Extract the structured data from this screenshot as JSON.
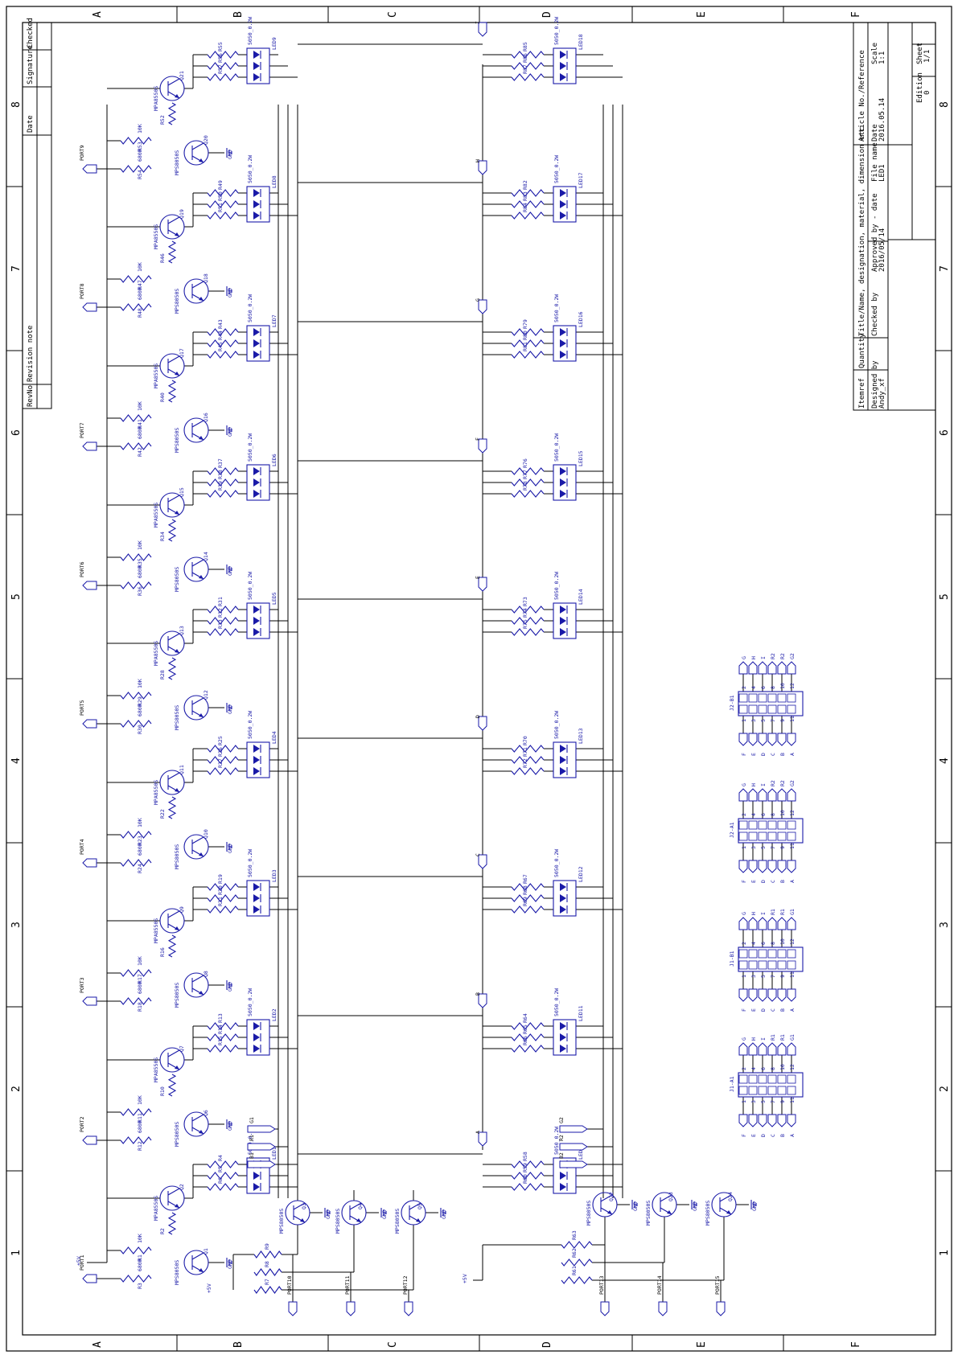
{
  "zones": {
    "columns": [
      "A",
      "B",
      "C",
      "D",
      "E",
      "F"
    ],
    "rows": [
      "1",
      "2",
      "3",
      "4",
      "5",
      "6",
      "7",
      "8"
    ]
  },
  "revision_block": {
    "headers": [
      "RevNo",
      "Revision note",
      "Date",
      "Signature",
      "Checked"
    ]
  },
  "title_block": {
    "itemref": "Itemref",
    "quantity": "Quantity",
    "title": "Title/Name, designation, material, dimension etc",
    "article": "Article No./Reference",
    "designed_by_label": "Designed by",
    "designed_by": "Andy_xf",
    "checked_by_label": "Checked by",
    "approved_label": "Approved by - date",
    "approved_date": "2016/05/14",
    "file_name_label": "File name",
    "file_name": "LED1",
    "date_label": "Date",
    "date": "2016.05.14",
    "scale_label": "Scale",
    "scale": "1:1",
    "edition_label": "Edition",
    "edition": "0",
    "sheet_label": "Sheet",
    "sheet": "1/1"
  },
  "left_stages": [
    {
      "port": "PORT1",
      "npn": "Q1",
      "pnp": "Q2",
      "r_base": "R3",
      "r_bias": "R1",
      "r_pnp": "R2",
      "led": "LED1",
      "ra": "R4",
      "rb": "R5",
      "rc": "R6"
    },
    {
      "port": "PORT2",
      "npn": "Q6",
      "pnp": "Q7",
      "r_base": "R12",
      "r_bias": "R11",
      "r_pnp": "R10",
      "led": "LED2",
      "ra": "R13",
      "rb": "R14",
      "rc": "R15"
    },
    {
      "port": "PORT3",
      "npn": "Q8",
      "pnp": "Q9",
      "r_base": "R18",
      "r_bias": "R17",
      "r_pnp": "R16",
      "led": "LED3",
      "ra": "R19",
      "rb": "R20",
      "rc": "R21"
    },
    {
      "port": "PORT4",
      "npn": "Q10",
      "pnp": "Q11",
      "r_base": "R24",
      "r_bias": "R23",
      "r_pnp": "R22",
      "led": "LED4",
      "ra": "R25",
      "rb": "R26",
      "rc": "R27"
    },
    {
      "port": "PORT5",
      "npn": "Q12",
      "pnp": "Q13",
      "r_base": "R30",
      "r_bias": "R29",
      "r_pnp": "R28",
      "led": "LED5",
      "ra": "R31",
      "rb": "R32",
      "rc": "R33"
    },
    {
      "port": "PORT6",
      "npn": "Q14",
      "pnp": "Q15",
      "r_base": "R36",
      "r_bias": "R35",
      "r_pnp": "R34",
      "led": "LED6",
      "ra": "R37",
      "rb": "R38",
      "rc": "R39"
    },
    {
      "port": "PORT7",
      "npn": "Q16",
      "pnp": "Q17",
      "r_base": "R42",
      "r_bias": "R41",
      "r_pnp": "R40",
      "led": "LED7",
      "ra": "R43",
      "rb": "R44",
      "rc": "R45"
    },
    {
      "port": "PORT8",
      "npn": "Q18",
      "pnp": "Q19",
      "r_base": "R48",
      "r_bias": "R47",
      "r_pnp": "R46",
      "led": "LED8",
      "ra": "R49",
      "rb": "R50",
      "rc": "R51"
    },
    {
      "port": "PORT9",
      "npn": "Q20",
      "pnp": "Q21",
      "r_base": "R54",
      "r_bias": "R53",
      "r_pnp": "R52",
      "led": "LED9",
      "ra": "R55",
      "rb": "R56",
      "rc": "R57"
    }
  ],
  "right_stages": [
    {
      "net": "A",
      "led": "LED10",
      "ra": "R58",
      "rb": "R59",
      "rc": "R60"
    },
    {
      "net": "B",
      "led": "LED11",
      "ra": "R64",
      "rb": "R65",
      "rc": "R66"
    },
    {
      "net": "C",
      "led": "LED12",
      "ra": "R67",
      "rb": "R68",
      "rc": "R69"
    },
    {
      "net": "D",
      "led": "LED13",
      "ra": "R70",
      "rb": "R71",
      "rc": "R72"
    },
    {
      "net": "E",
      "led": "LED14",
      "ra": "R73",
      "rb": "R74",
      "rc": "R75"
    },
    {
      "net": "F",
      "led": "LED15",
      "ra": "R76",
      "rb": "R77",
      "rc": "R78"
    },
    {
      "net": "G",
      "led": "LED16",
      "ra": "R79",
      "rb": "R80",
      "rc": "R81"
    },
    {
      "net": "H",
      "led": "LED17",
      "ra": "R82",
      "rb": "R83",
      "rc": "R84"
    },
    {
      "net": "I",
      "led": "LED18",
      "ra": "R85",
      "rb": "R86",
      "rc": "R87"
    }
  ],
  "drivers_left": [
    {
      "q": "Q3",
      "r": "R9",
      "port": "PORT10"
    },
    {
      "q": "Q4",
      "r": "R8",
      "port": "PORT11"
    },
    {
      "q": "Q5",
      "r": "R7",
      "port": "PORT12"
    }
  ],
  "drivers_right": [
    {
      "q": "Q22",
      "r": "R63",
      "port": "PORT13"
    },
    {
      "q": "Q23",
      "r": "R62",
      "port": "PORT14"
    },
    {
      "q": "Q24",
      "r": "R61",
      "port": "PORT15"
    }
  ],
  "labels": {
    "npn_part": "MPS8050S",
    "pnp_part": "MPA8550S",
    "led_part": "5050_0.2W",
    "r_base_val": "680R",
    "r_bias_val": "10K",
    "r_led_val": "180ohm",
    "gnd": "GND",
    "vcc": "+5V"
  },
  "bus_left": [
    "G1",
    "R1",
    "B1"
  ],
  "bus_right": [
    "G2",
    "R2",
    "B2"
  ],
  "connectors": [
    {
      "name": "J2-B1",
      "top": [
        "F",
        "E",
        "D",
        "C",
        "B",
        "A"
      ],
      "bottom": [
        "G",
        "H",
        "I",
        "R2",
        "R2",
        "G2"
      ]
    },
    {
      "name": "J2-A1",
      "top": [
        "F",
        "E",
        "D",
        "C",
        "B",
        "A"
      ],
      "bottom": [
        "G",
        "H",
        "I",
        "R2",
        "R2",
        "G2"
      ]
    },
    {
      "name": "J1-B1",
      "top": [
        "F",
        "E",
        "D",
        "C",
        "B",
        "A"
      ],
      "bottom": [
        "G",
        "H",
        "I",
        "R1",
        "R1",
        "G1"
      ]
    },
    {
      "name": "J1-A1",
      "top": [
        "F",
        "E",
        "D",
        "C",
        "B",
        "A"
      ],
      "bottom": [
        "G",
        "H",
        "I",
        "R1",
        "R1",
        "G1"
      ]
    }
  ],
  "pin_numbers": {
    "top": [
      "1",
      "3",
      "5",
      "7",
      "9",
      "11"
    ],
    "bottom": [
      "2",
      "4",
      "6",
      "8",
      "10",
      "12"
    ]
  }
}
